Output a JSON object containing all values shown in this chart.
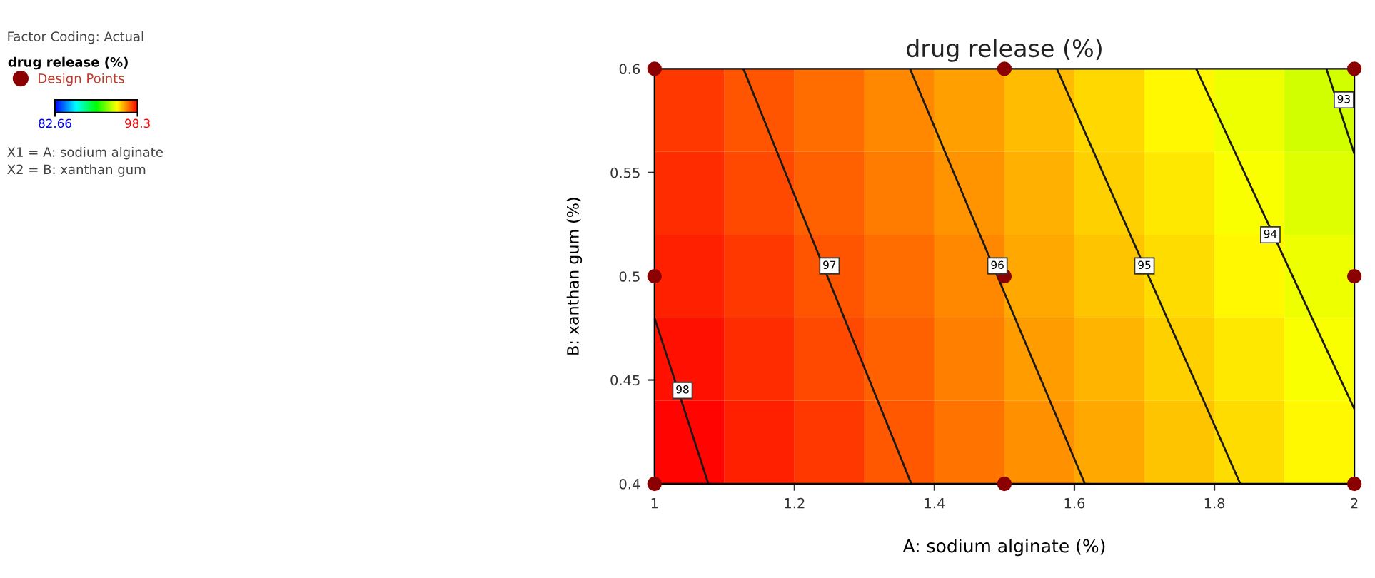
{
  "chart_data": {
    "type": "heatmap",
    "title": "drug release (%)",
    "xlabel": "A: sodium alginate (%)",
    "ylabel": "B: xanthan gum (%)",
    "legend_title": "drug release (%)",
    "legend": "left",
    "xlim": [
      1,
      2
    ],
    "ylim": [
      0.4,
      0.6
    ],
    "xticks": [
      1,
      {
        "value": 1.2,
        "label": "1.2"
      },
      {
        "value": 1.4,
        "label": "1.4"
      },
      {
        "value": 1.6,
        "label": "1.6"
      },
      {
        "value": 1.8,
        "label": "1.8"
      },
      2
    ],
    "yticks": [
      0.4,
      0.45,
      0.5,
      0.55,
      0.6
    ],
    "clim": [
      82.66,
      98.3
    ],
    "cticks": [
      82.66,
      98.3
    ],
    "cells": [
      [
        97.4,
        97.0,
        96.6,
        96.2,
        95.8,
        95.4,
        95.0,
        94.5,
        94.1,
        93.7
      ],
      [
        97.6,
        97.2,
        96.8,
        96.4,
        96.0,
        95.6,
        95.1,
        94.7,
        94.3,
        93.9
      ],
      [
        97.8,
        97.4,
        97.0,
        96.6,
        96.2,
        95.7,
        95.3,
        94.9,
        94.5,
        94.1
      ],
      [
        98.0,
        97.6,
        97.2,
        96.8,
        96.3,
        95.9,
        95.5,
        95.1,
        94.7,
        94.3
      ],
      [
        98.2,
        97.8,
        97.4,
        96.9,
        96.5,
        96.1,
        95.7,
        95.3,
        94.9,
        94.5
      ]
    ],
    "series": [
      {
        "type": "line",
        "color": "#1a1a1a",
        "x": [
          1.0,
          1.077
        ],
        "values": [
          0.48,
          0.4
        ]
      },
      {
        "type": "line",
        "color": "#1a1a1a",
        "x": [
          1.127,
          1.367
        ],
        "values": [
          0.6,
          0.4
        ]
      },
      {
        "type": "line",
        "color": "#1a1a1a",
        "x": [
          1.365,
          1.615
        ],
        "values": [
          0.6,
          0.4
        ]
      },
      {
        "type": "line",
        "color": "#1a1a1a",
        "x": [
          1.575,
          1.837
        ],
        "values": [
          0.6,
          0.4
        ]
      },
      {
        "type": "line",
        "color": "#1a1a1a",
        "x": [
          1.774,
          2.0
        ],
        "values": [
          0.6,
          0.436
        ]
      },
      {
        "type": "line",
        "color": "#1a1a1a",
        "x": [
          1.96,
          2.0
        ],
        "values": [
          0.6,
          0.559
        ]
      },
      {
        "type": "scatter",
        "name": "Design Points",
        "color": "#8b0000",
        "marker": "circle",
        "x": [
          1,
          1,
          1,
          1.5,
          1.5,
          1.5,
          2,
          2,
          2
        ],
        "values": [
          0.4,
          0.5,
          0.6,
          0.4,
          0.5,
          0.6,
          0.4,
          0.5,
          0.6
        ]
      }
    ],
    "annotations": [
      "Factor Coding: Actual",
      {
        "text": "98",
        "x": 1.04,
        "y": 0.445
      },
      {
        "text": "97",
        "x": 1.25,
        "y": 0.505
      },
      {
        "text": "96",
        "x": 1.49,
        "y": 0.505
      },
      {
        "text": "95",
        "x": 1.7,
        "y": 0.505
      },
      {
        "text": "94",
        "x": 1.88,
        "y": 0.52
      },
      {
        "text": "93",
        "x": 1.985,
        "y": 0.585
      },
      "X1 = A: sodium alginate",
      "X2 = B: xanthan gum"
    ]
  }
}
